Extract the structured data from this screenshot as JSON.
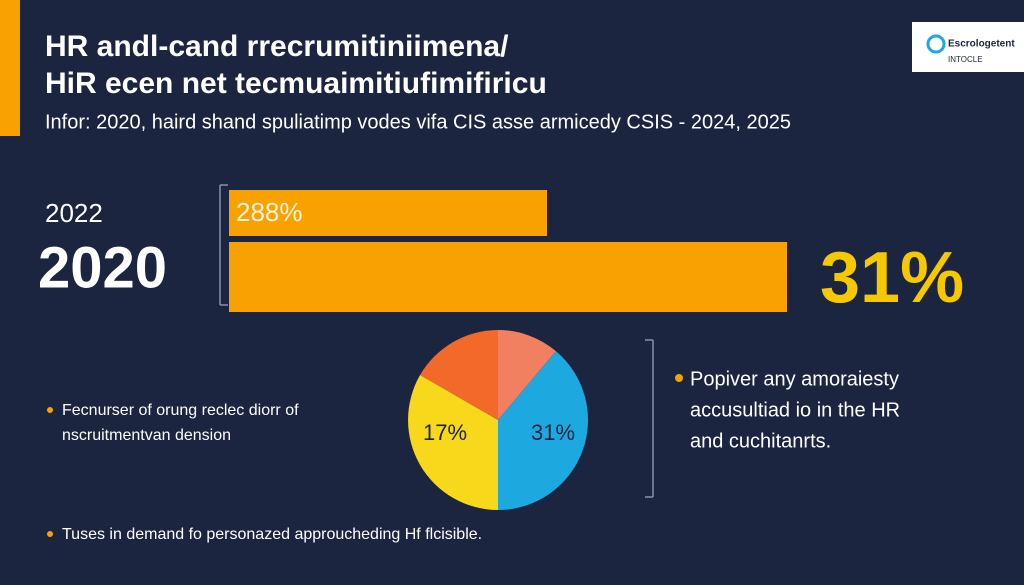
{
  "header": {
    "title_lines": [
      "HR  andl-cand rrecrumitiniimena/",
      "HiR ecen net tecmuaimitiufimifiricu"
    ],
    "subtitle": "Infor: 2020, haird shand spuliatimp vodes vifa CIS asse armicedy CSIS - 2024,  2025",
    "logo": {
      "name": "Escrologetent",
      "tagline": "INTOCLE"
    }
  },
  "bars": {
    "years": [
      "2022",
      "2020"
    ],
    "labels": [
      "288%",
      "31%"
    ]
  },
  "pie": {
    "labels": [
      "17%",
      "31%"
    ]
  },
  "bullets": {
    "left": [
      "Fecnurser of orung reclec diorr of",
      "nscruitmentvan dension"
    ],
    "right": [
      "Popiver any amoraiesty",
      "accusultiad io in the HR",
      "and cuchitanrts."
    ],
    "bottom": [
      "Tuses in demand fo personazed approucheding Hf flcisible."
    ]
  }
}
